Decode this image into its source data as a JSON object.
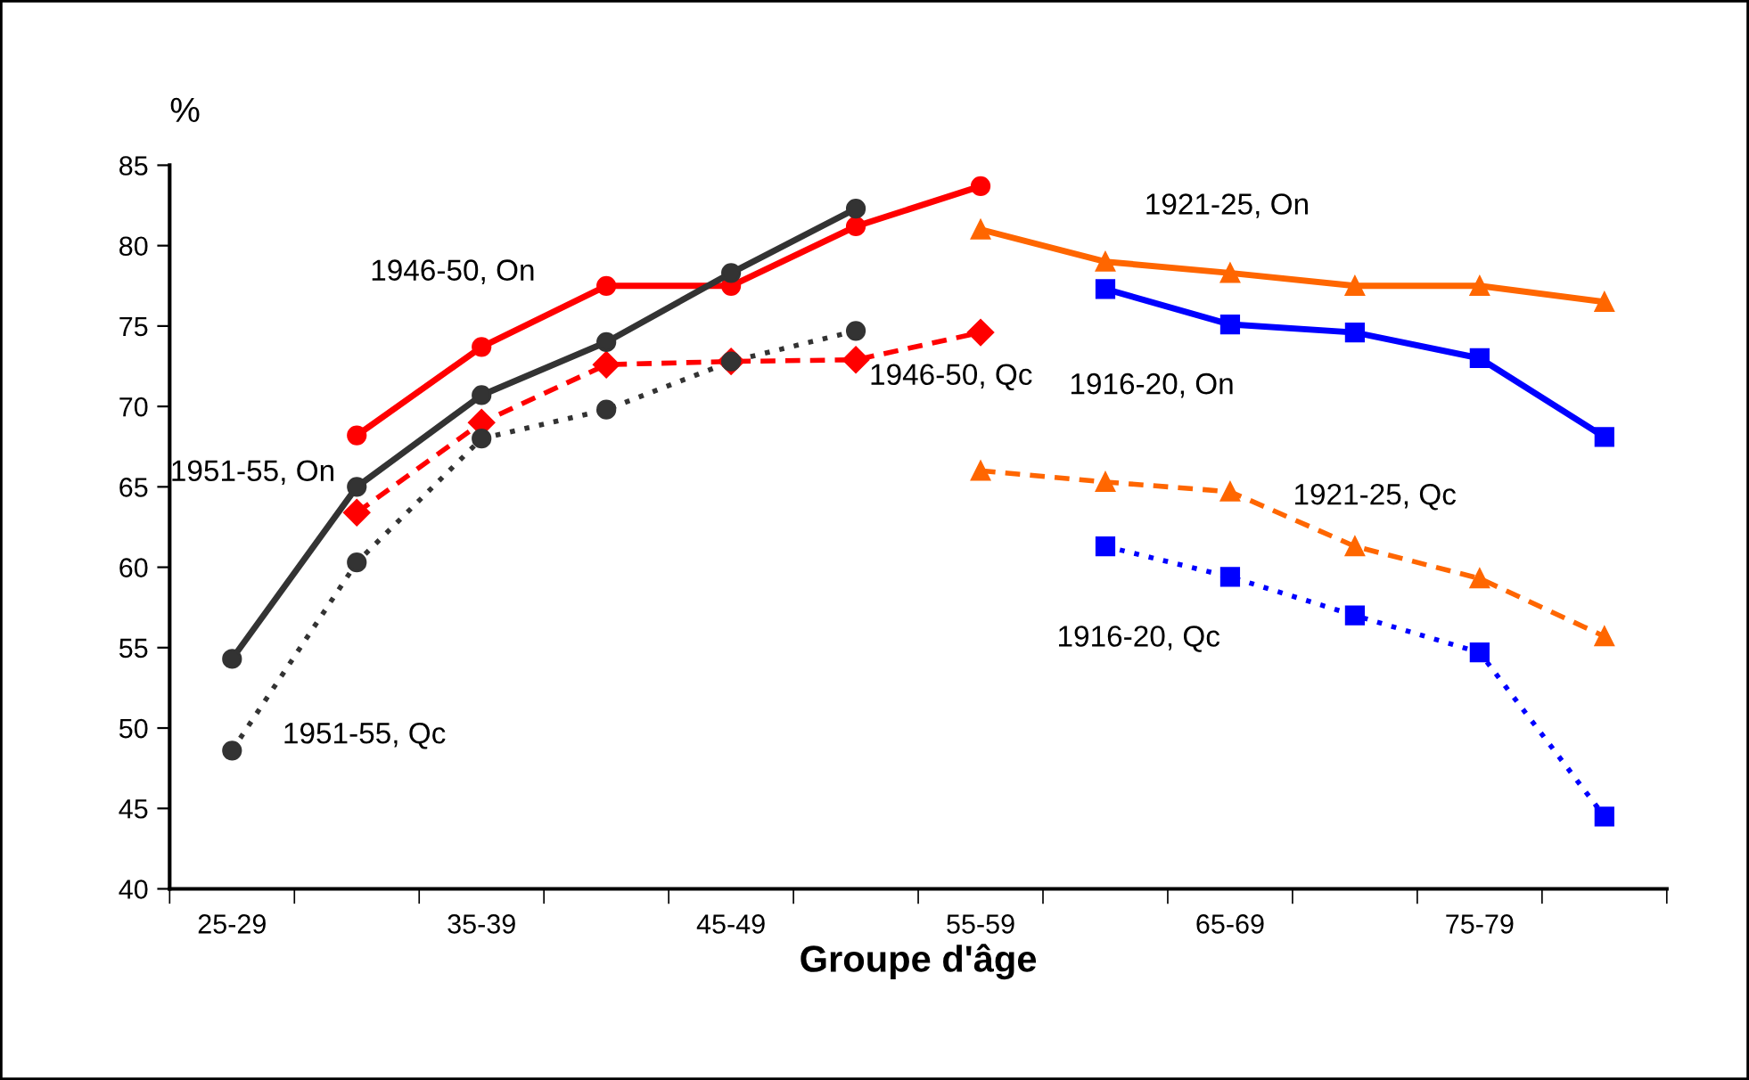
{
  "chart_data": {
    "type": "line",
    "ylabel": "%",
    "xlabel": "Groupe d'âge",
    "categories": [
      "25-29",
      null,
      "35-39",
      null,
      "45-49",
      null,
      "55-59",
      null,
      "65-69",
      null,
      "75-79",
      null
    ],
    "ylim": [
      40,
      85
    ],
    "yticks": [
      40,
      45,
      50,
      55,
      60,
      65,
      70,
      75,
      80,
      85
    ],
    "grid": false,
    "legend": false,
    "series": [
      {
        "name": "1951-55, On",
        "color": "#333333",
        "marker": "circle",
        "line_style": "solid",
        "values": [
          54.3,
          65.0,
          70.7,
          74.0,
          78.3,
          82.3,
          null,
          null,
          null,
          null,
          null,
          null
        ]
      },
      {
        "name": "1951-55, Qc",
        "color": "#333333",
        "marker": "circle",
        "line_style": "dotted",
        "values": [
          48.6,
          60.3,
          68.0,
          69.8,
          72.8,
          74.7,
          null,
          null,
          null,
          null,
          null,
          null
        ]
      },
      {
        "name": "1946-50, On",
        "color": "#ff0000",
        "marker": "circle",
        "line_style": "solid",
        "values": [
          null,
          68.2,
          73.7,
          77.5,
          77.5,
          81.2,
          83.7,
          null,
          null,
          null,
          null,
          null
        ]
      },
      {
        "name": "1946-50, Qc",
        "color": "#ff0000",
        "marker": "diamond",
        "line_style": "dashed",
        "values": [
          null,
          63.4,
          69.0,
          72.6,
          72.8,
          72.9,
          74.6,
          null,
          null,
          null,
          null,
          null
        ]
      },
      {
        "name": "1921-25, On",
        "color": "#ff6600",
        "marker": "triangle",
        "line_style": "solid",
        "values": [
          null,
          null,
          null,
          null,
          null,
          null,
          81.0,
          79.0,
          78.3,
          77.5,
          77.5,
          76.5
        ]
      },
      {
        "name": "1916-20, On",
        "color": "#0000ff",
        "marker": "square",
        "line_style": "solid",
        "values": [
          null,
          null,
          null,
          null,
          null,
          null,
          null,
          77.3,
          75.1,
          74.6,
          73.0,
          68.1
        ]
      },
      {
        "name": "1921-25, Qc",
        "color": "#ff6600",
        "marker": "triangle",
        "line_style": "dashed",
        "values": [
          null,
          null,
          null,
          null,
          null,
          null,
          66.0,
          65.3,
          64.7,
          61.3,
          59.3,
          55.7
        ]
      },
      {
        "name": "1916-20, Qc",
        "color": "#0000ff",
        "marker": "square",
        "line_style": "dotted",
        "values": [
          null,
          null,
          null,
          null,
          null,
          null,
          null,
          61.3,
          59.4,
          57.0,
          54.7,
          44.5
        ]
      }
    ]
  }
}
